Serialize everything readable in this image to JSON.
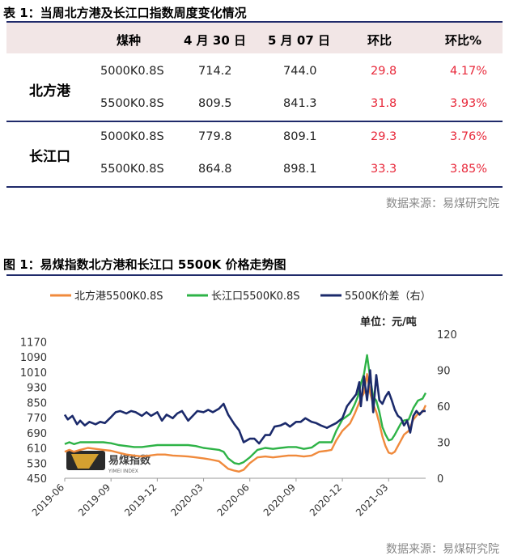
{
  "table": {
    "caption": "表 1：当周北方港及长江口指数周度变化情况",
    "headers": [
      "煤种",
      "4 月 30 日",
      "5 月 07 日",
      "环比",
      "环比%"
    ],
    "groups": [
      {
        "name": "北方港",
        "rows": [
          {
            "grade": "5000K0.8S",
            "apr30": "714.2",
            "may07": "744.0",
            "chg": "29.8",
            "pct": "4.17%"
          },
          {
            "grade": "5500K0.8S",
            "apr30": "809.5",
            "may07": "841.3",
            "chg": "31.8",
            "pct": "3.93%"
          }
        ]
      },
      {
        "name": "长江口",
        "rows": [
          {
            "grade": "5000K0.8S",
            "apr30": "779.8",
            "may07": "809.1",
            "chg": "29.3",
            "pct": "3.76%"
          },
          {
            "grade": "5500K0.8S",
            "apr30": "864.8",
            "may07": "898.1",
            "chg": "33.3",
            "pct": "3.85%"
          }
        ]
      }
    ],
    "source": "数据来源：易煤研究院"
  },
  "figure": {
    "caption": "图 1：易煤指数北方港和长江口 5500K 价格走势图",
    "source": "数据来源：易煤研究院",
    "watermark": {
      "cn": "易煤指数",
      "en": "YIMEI INDEX"
    }
  },
  "chart_data": {
    "type": "line",
    "unit_label": "单位：元/吨",
    "x_ticks": [
      "2019-06",
      "2019-09",
      "2019-12",
      "2020-03",
      "2020-06",
      "2020-09",
      "2020-12",
      "2021-03"
    ],
    "x_range": [
      "2019-06",
      "2021-05"
    ],
    "y_left": {
      "ticks": [
        450,
        530,
        610,
        690,
        770,
        850,
        930,
        1010,
        1090,
        1170
      ],
      "range": [
        450,
        1210
      ]
    },
    "y_right": {
      "ticks": [
        0,
        30,
        60,
        90,
        120
      ],
      "range": [
        0,
        120
      ]
    },
    "legend_position": "top",
    "series": [
      {
        "name": "北方港5500K0.8S",
        "axis": "left",
        "color": "#f08a3c",
        "values": [
          [
            0,
            590
          ],
          [
            0.3,
            600
          ],
          [
            0.6,
            590
          ],
          [
            1,
            600
          ],
          [
            1.5,
            610
          ],
          [
            2,
            605
          ],
          [
            2.5,
            600
          ],
          [
            3,
            595
          ],
          [
            3.5,
            585
          ],
          [
            4,
            575
          ],
          [
            4.5,
            570
          ],
          [
            5,
            565
          ],
          [
            5.5,
            570
          ],
          [
            6,
            575
          ],
          [
            6.5,
            575
          ],
          [
            7,
            570
          ],
          [
            7.5,
            568
          ],
          [
            8,
            565
          ],
          [
            8.5,
            560
          ],
          [
            9,
            555
          ],
          [
            9.5,
            548
          ],
          [
            10,
            540
          ],
          [
            10.3,
            520
          ],
          [
            10.6,
            500
          ],
          [
            11,
            490
          ],
          [
            11.3,
            485
          ],
          [
            11.6,
            495
          ],
          [
            12,
            530
          ],
          [
            12.5,
            560
          ],
          [
            13,
            565
          ],
          [
            13.5,
            560
          ],
          [
            14,
            565
          ],
          [
            14.5,
            570
          ],
          [
            15,
            570
          ],
          [
            15.5,
            565
          ],
          [
            16,
            570
          ],
          [
            16.5,
            590
          ],
          [
            17,
            595
          ],
          [
            17.3,
            600
          ],
          [
            17.6,
            650
          ],
          [
            18,
            700
          ],
          [
            18.5,
            740
          ],
          [
            18.8,
            790
          ],
          [
            19,
            830
          ],
          [
            19.2,
            870
          ],
          [
            19.4,
            900
          ],
          [
            19.6,
            1000
          ],
          [
            19.8,
            900
          ],
          [
            20,
            840
          ],
          [
            20.2,
            800
          ],
          [
            20.4,
            740
          ],
          [
            20.6,
            670
          ],
          [
            20.8,
            620
          ],
          [
            21,
            585
          ],
          [
            21.2,
            580
          ],
          [
            21.4,
            590
          ],
          [
            21.6,
            620
          ],
          [
            21.8,
            650
          ],
          [
            22,
            680
          ],
          [
            22.3,
            700
          ],
          [
            22.6,
            760
          ],
          [
            22.9,
            790
          ],
          [
            23.2,
            800
          ],
          [
            23.4,
            835
          ]
        ]
      },
      {
        "name": "长江口5500K0.8S",
        "axis": "left",
        "color": "#2eb347",
        "values": [
          [
            0,
            630
          ],
          [
            0.3,
            640
          ],
          [
            0.6,
            630
          ],
          [
            1,
            640
          ],
          [
            1.5,
            640
          ],
          [
            2,
            640
          ],
          [
            2.5,
            640
          ],
          [
            3,
            635
          ],
          [
            3.5,
            625
          ],
          [
            4,
            620
          ],
          [
            4.5,
            615
          ],
          [
            5,
            615
          ],
          [
            5.5,
            620
          ],
          [
            6,
            625
          ],
          [
            6.5,
            625
          ],
          [
            7,
            625
          ],
          [
            7.5,
            625
          ],
          [
            8,
            625
          ],
          [
            8.5,
            620
          ],
          [
            9,
            610
          ],
          [
            9.5,
            605
          ],
          [
            10,
            600
          ],
          [
            10.3,
            590
          ],
          [
            10.6,
            555
          ],
          [
            11,
            530
          ],
          [
            11.3,
            525
          ],
          [
            11.6,
            535
          ],
          [
            12,
            560
          ],
          [
            12.5,
            600
          ],
          [
            13,
            610
          ],
          [
            13.5,
            605
          ],
          [
            14,
            610
          ],
          [
            14.5,
            615
          ],
          [
            15,
            615
          ],
          [
            15.5,
            605
          ],
          [
            16,
            612
          ],
          [
            16.5,
            640
          ],
          [
            17,
            640
          ],
          [
            17.3,
            640
          ],
          [
            17.6,
            700
          ],
          [
            18,
            760
          ],
          [
            18.5,
            790
          ],
          [
            18.8,
            840
          ],
          [
            19,
            880
          ],
          [
            19.2,
            950
          ],
          [
            19.4,
            1000
          ],
          [
            19.6,
            1100
          ],
          [
            19.8,
            980
          ],
          [
            20,
            880
          ],
          [
            20.2,
            860
          ],
          [
            20.4,
            800
          ],
          [
            20.6,
            720
          ],
          [
            20.8,
            680
          ],
          [
            21,
            650
          ],
          [
            21.2,
            655
          ],
          [
            21.4,
            680
          ],
          [
            21.6,
            710
          ],
          [
            21.8,
            740
          ],
          [
            22,
            755
          ],
          [
            22.3,
            760
          ],
          [
            22.6,
            820
          ],
          [
            22.9,
            860
          ],
          [
            23.2,
            870
          ],
          [
            23.4,
            900
          ]
        ]
      },
      {
        "name": "5500K价差（右）",
        "axis": "right",
        "color": "#1b2a6b",
        "values": [
          [
            0,
            53
          ],
          [
            0.2,
            49
          ],
          [
            0.5,
            52
          ],
          [
            0.8,
            45
          ],
          [
            1,
            48
          ],
          [
            1.3,
            44
          ],
          [
            1.6,
            47
          ],
          [
            2,
            45
          ],
          [
            2.3,
            47
          ],
          [
            2.6,
            46
          ],
          [
            3,
            51
          ],
          [
            3.3,
            55
          ],
          [
            3.6,
            56
          ],
          [
            4,
            54
          ],
          [
            4.3,
            56
          ],
          [
            4.6,
            55
          ],
          [
            5,
            52
          ],
          [
            5.3,
            55
          ],
          [
            5.6,
            52
          ],
          [
            6,
            55
          ],
          [
            6.3,
            48
          ],
          [
            6.6,
            53
          ],
          [
            7,
            50
          ],
          [
            7.3,
            54
          ],
          [
            7.6,
            56
          ],
          [
            8,
            48
          ],
          [
            8.3,
            52
          ],
          [
            8.6,
            56
          ],
          [
            9,
            55
          ],
          [
            9.3,
            57
          ],
          [
            9.6,
            55
          ],
          [
            10,
            58
          ],
          [
            10.3,
            62
          ],
          [
            10.6,
            53
          ],
          [
            11,
            45
          ],
          [
            11.3,
            40
          ],
          [
            11.6,
            30
          ],
          [
            12,
            33
          ],
          [
            12.3,
            33
          ],
          [
            12.6,
            29
          ],
          [
            13,
            36
          ],
          [
            13.3,
            36
          ],
          [
            13.6,
            43
          ],
          [
            14,
            44
          ],
          [
            14.3,
            46
          ],
          [
            14.6,
            43
          ],
          [
            15,
            47
          ],
          [
            15.3,
            47
          ],
          [
            15.6,
            50
          ],
          [
            16,
            47
          ],
          [
            16.3,
            46
          ],
          [
            16.6,
            44
          ],
          [
            17,
            42
          ],
          [
            17.3,
            44
          ],
          [
            17.6,
            46
          ],
          [
            18,
            50
          ],
          [
            18.3,
            60
          ],
          [
            18.6,
            65
          ],
          [
            18.9,
            70
          ],
          [
            19.1,
            80
          ],
          [
            19.2,
            60
          ],
          [
            19.4,
            85
          ],
          [
            19.6,
            65
          ],
          [
            19.8,
            90
          ],
          [
            20,
            55
          ],
          [
            20.2,
            86
          ],
          [
            20.4,
            65
          ],
          [
            20.6,
            62
          ],
          [
            20.8,
            68
          ],
          [
            21,
            72
          ],
          [
            21.2,
            65
          ],
          [
            21.4,
            57
          ],
          [
            21.6,
            52
          ],
          [
            21.8,
            50
          ],
          [
            22,
            44
          ],
          [
            22.2,
            48
          ],
          [
            22.4,
            38
          ],
          [
            22.6,
            52
          ],
          [
            22.8,
            56
          ],
          [
            23,
            53
          ],
          [
            23.2,
            56
          ],
          [
            23.4,
            56
          ]
        ]
      }
    ]
  }
}
